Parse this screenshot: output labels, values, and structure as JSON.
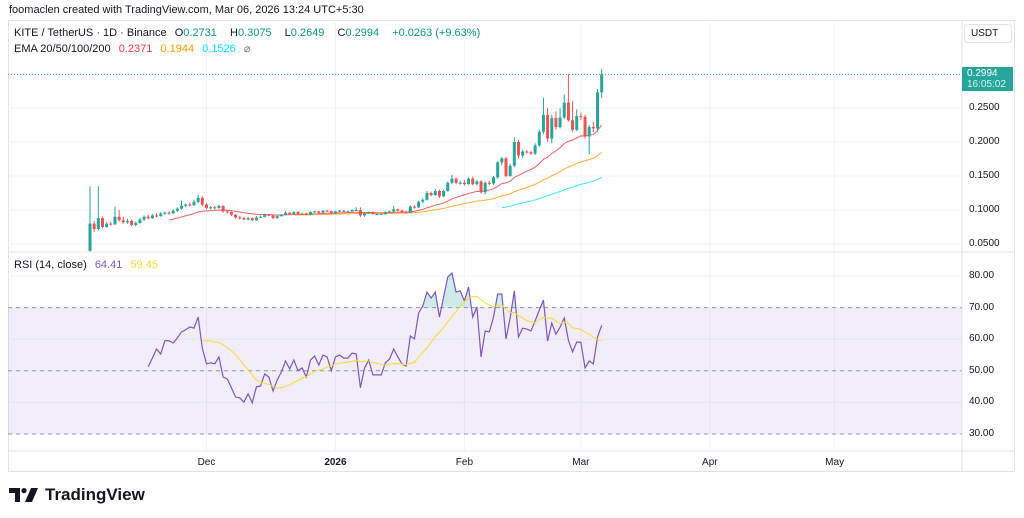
{
  "header": {
    "attribution": "foomaclen created with TradingView.com, Mar 06, 2026 13:24 UTC+5:30"
  },
  "legend": {
    "symbol": "KITE / TetherUS · 1D · Binance",
    "open_label": "O",
    "open": "0.2731",
    "high_label": "H",
    "high": "0.3075",
    "low_label": "L",
    "low": "0.2649",
    "close_label": "C",
    "close": "0.2994",
    "change": "+0.0263 (+9.63%)",
    "ema_label": "EMA 20/50/100/200",
    "ema20": "0.2371",
    "ema50": "0.1944",
    "ema100": "0.1526",
    "ema200": "⌀"
  },
  "rsi_legend": {
    "label": "RSI (14, close)",
    "rsi": "64.41",
    "rsi_ma": "59.45"
  },
  "price_axis": {
    "currency": "USDT",
    "ticks": [
      "0.2500",
      "0.2000",
      "0.1500",
      "0.1000",
      "0.0500"
    ],
    "last_price": "0.2994",
    "countdown": "16:05:02"
  },
  "rsi_axis": {
    "ticks": [
      "80.00",
      "70.00",
      "60.00",
      "50.00",
      "40.00",
      "30.00"
    ]
  },
  "time_axis": {
    "ticks": [
      {
        "label": "Dec",
        "date": "2025-12-01",
        "bold": false
      },
      {
        "label": "2026",
        "date": "2026-01-01",
        "bold": true
      },
      {
        "label": "Feb",
        "date": "2026-02-01",
        "bold": false
      },
      {
        "label": "Mar",
        "date": "2026-03-01",
        "bold": false
      },
      {
        "label": "Apr",
        "date": "2026-04-01",
        "bold": false
      },
      {
        "label": "May",
        "date": "2026-05-01",
        "bold": false
      }
    ]
  },
  "logo": {
    "text": "TradingView"
  },
  "colors": {
    "up": "#26a69a",
    "down": "#ef5350",
    "ema20": "#f23645",
    "ema50": "#ff9800",
    "ema100": "#00e5ff",
    "rsi": "#7e57c2",
    "rsi_ma": "#fdd835",
    "band": "#7e57c2"
  },
  "chart_data": [
    {
      "type": "candlestick",
      "title": "KITE / TetherUS · 1D · Binance",
      "ylim": [
        0.03,
        0.34
      ],
      "y_ticks": [
        0.05,
        0.1,
        0.15,
        0.2,
        0.25
      ],
      "grid": true,
      "indicators": [
        "EMA 20",
        "EMA 50",
        "EMA 100",
        "EMA 200"
      ],
      "columns": [
        "date",
        "open",
        "high",
        "low",
        "close"
      ],
      "candles": [
        [
          "2025-11-03",
          0.04,
          0.135,
          0.038,
          0.08
        ],
        [
          "2025-11-04",
          0.08,
          0.084,
          0.068,
          0.072
        ],
        [
          "2025-11-05",
          0.072,
          0.135,
          0.07,
          0.088
        ],
        [
          "2025-11-06",
          0.088,
          0.09,
          0.073,
          0.075
        ],
        [
          "2025-11-07",
          0.075,
          0.082,
          0.074,
          0.08
        ],
        [
          "2025-11-08",
          0.08,
          0.083,
          0.077,
          0.079
        ],
        [
          "2025-11-09",
          0.079,
          0.105,
          0.078,
          0.09
        ],
        [
          "2025-11-10",
          0.09,
          0.1,
          0.083,
          0.085
        ],
        [
          "2025-11-11",
          0.085,
          0.09,
          0.08,
          0.082
        ],
        [
          "2025-11-12",
          0.082,
          0.087,
          0.08,
          0.084
        ],
        [
          "2025-11-13",
          0.084,
          0.086,
          0.076,
          0.078
        ],
        [
          "2025-11-14",
          0.078,
          0.083,
          0.076,
          0.081
        ],
        [
          "2025-11-15",
          0.081,
          0.088,
          0.08,
          0.086
        ],
        [
          "2025-11-16",
          0.086,
          0.092,
          0.084,
          0.09
        ],
        [
          "2025-11-17",
          0.09,
          0.093,
          0.086,
          0.088
        ],
        [
          "2025-11-18",
          0.088,
          0.094,
          0.087,
          0.092
        ],
        [
          "2025-11-19",
          0.092,
          0.095,
          0.089,
          0.091
        ],
        [
          "2025-11-20",
          0.091,
          0.097,
          0.09,
          0.095
        ],
        [
          "2025-11-21",
          0.095,
          0.098,
          0.093,
          0.096
        ],
        [
          "2025-11-22",
          0.096,
          0.098,
          0.093,
          0.095
        ],
        [
          "2025-11-23",
          0.095,
          0.101,
          0.094,
          0.099
        ],
        [
          "2025-11-24",
          0.099,
          0.104,
          0.097,
          0.102
        ],
        [
          "2025-11-25",
          0.102,
          0.114,
          0.101,
          0.106
        ],
        [
          "2025-11-26",
          0.106,
          0.11,
          0.104,
          0.108
        ],
        [
          "2025-11-27",
          0.108,
          0.111,
          0.105,
          0.107
        ],
        [
          "2025-11-28",
          0.107,
          0.115,
          0.106,
          0.112
        ],
        [
          "2025-11-29",
          0.112,
          0.122,
          0.11,
          0.118
        ],
        [
          "2025-11-30",
          0.118,
          0.12,
          0.106,
          0.108
        ],
        [
          "2025-12-01",
          0.108,
          0.11,
          0.101,
          0.103
        ],
        [
          "2025-12-02",
          0.103,
          0.106,
          0.101,
          0.104
        ],
        [
          "2025-12-03",
          0.104,
          0.106,
          0.101,
          0.103
        ],
        [
          "2025-12-04",
          0.103,
          0.108,
          0.102,
          0.106
        ],
        [
          "2025-12-05",
          0.106,
          0.107,
          0.096,
          0.098
        ],
        [
          "2025-12-06",
          0.098,
          0.1,
          0.095,
          0.097
        ],
        [
          "2025-12-07",
          0.097,
          0.098,
          0.091,
          0.093
        ],
        [
          "2025-12-08",
          0.093,
          0.094,
          0.087,
          0.089
        ],
        [
          "2025-12-09",
          0.089,
          0.091,
          0.086,
          0.088
        ],
        [
          "2025-12-10",
          0.088,
          0.09,
          0.085,
          0.086
        ],
        [
          "2025-12-11",
          0.086,
          0.09,
          0.085,
          0.088
        ],
        [
          "2025-12-12",
          0.088,
          0.089,
          0.084,
          0.085
        ],
        [
          "2025-12-13",
          0.085,
          0.091,
          0.084,
          0.089
        ],
        [
          "2025-12-14",
          0.089,
          0.092,
          0.088,
          0.09
        ],
        [
          "2025-12-15",
          0.09,
          0.095,
          0.089,
          0.093
        ],
        [
          "2025-12-16",
          0.093,
          0.094,
          0.091,
          0.092
        ],
        [
          "2025-12-17",
          0.092,
          0.093,
          0.087,
          0.088
        ],
        [
          "2025-12-18",
          0.088,
          0.092,
          0.087,
          0.091
        ],
        [
          "2025-12-19",
          0.091,
          0.094,
          0.09,
          0.093
        ],
        [
          "2025-12-20",
          0.093,
          0.098,
          0.092,
          0.096
        ],
        [
          "2025-12-21",
          0.096,
          0.097,
          0.093,
          0.094
        ],
        [
          "2025-12-22",
          0.094,
          0.098,
          0.093,
          0.097
        ],
        [
          "2025-12-23",
          0.097,
          0.098,
          0.093,
          0.094
        ],
        [
          "2025-12-24",
          0.094,
          0.096,
          0.093,
          0.095
        ],
        [
          "2025-12-25",
          0.095,
          0.096,
          0.092,
          0.093
        ],
        [
          "2025-12-26",
          0.093,
          0.098,
          0.092,
          0.097
        ],
        [
          "2025-12-27",
          0.097,
          0.099,
          0.096,
          0.098
        ],
        [
          "2025-12-28",
          0.098,
          0.099,
          0.095,
          0.096
        ],
        [
          "2025-12-29",
          0.096,
          0.1,
          0.095,
          0.099
        ],
        [
          "2025-12-30",
          0.099,
          0.1,
          0.097,
          0.098
        ],
        [
          "2025-12-31",
          0.098,
          0.099,
          0.094,
          0.095
        ],
        [
          "2026-01-01",
          0.095,
          0.099,
          0.094,
          0.098
        ],
        [
          "2026-01-02",
          0.098,
          0.1,
          0.097,
          0.099
        ],
        [
          "2026-01-03",
          0.099,
          0.1,
          0.097,
          0.098
        ],
        [
          "2026-01-04",
          0.098,
          0.099,
          0.097,
          0.098
        ],
        [
          "2026-01-05",
          0.098,
          0.101,
          0.097,
          0.1
        ],
        [
          "2026-01-06",
          0.1,
          0.104,
          0.099,
          0.1
        ],
        [
          "2026-01-07",
          0.1,
          0.104,
          0.09,
          0.092
        ],
        [
          "2026-01-08",
          0.092,
          0.096,
          0.09,
          0.095
        ],
        [
          "2026-01-09",
          0.095,
          0.098,
          0.094,
          0.097
        ],
        [
          "2026-01-10",
          0.097,
          0.098,
          0.093,
          0.094
        ],
        [
          "2026-01-11",
          0.094,
          0.096,
          0.093,
          0.094
        ],
        [
          "2026-01-12",
          0.094,
          0.095,
          0.093,
          0.094
        ],
        [
          "2026-01-13",
          0.094,
          0.098,
          0.093,
          0.097
        ],
        [
          "2026-01-14",
          0.097,
          0.099,
          0.096,
          0.098
        ],
        [
          "2026-01-15",
          0.098,
          0.106,
          0.097,
          0.101
        ],
        [
          "2026-01-16",
          0.101,
          0.102,
          0.098,
          0.099
        ],
        [
          "2026-01-17",
          0.099,
          0.101,
          0.096,
          0.097
        ],
        [
          "2026-01-18",
          0.097,
          0.099,
          0.095,
          0.096
        ],
        [
          "2026-01-19",
          0.096,
          0.107,
          0.095,
          0.105
        ],
        [
          "2026-01-20",
          0.105,
          0.107,
          0.102,
          0.104
        ],
        [
          "2026-01-21",
          0.104,
          0.114,
          0.103,
          0.112
        ],
        [
          "2026-01-22",
          0.112,
          0.117,
          0.11,
          0.115
        ],
        [
          "2026-01-23",
          0.115,
          0.128,
          0.114,
          0.125
        ],
        [
          "2026-01-24",
          0.125,
          0.127,
          0.12,
          0.122
        ],
        [
          "2026-01-25",
          0.122,
          0.131,
          0.121,
          0.128
        ],
        [
          "2026-01-26",
          0.128,
          0.13,
          0.118,
          0.12
        ],
        [
          "2026-01-27",
          0.12,
          0.13,
          0.119,
          0.128
        ],
        [
          "2026-01-28",
          0.128,
          0.142,
          0.127,
          0.14
        ],
        [
          "2026-01-29",
          0.14,
          0.152,
          0.138,
          0.146
        ],
        [
          "2026-01-30",
          0.146,
          0.148,
          0.138,
          0.14
        ],
        [
          "2026-01-31",
          0.14,
          0.143,
          0.137,
          0.14
        ],
        [
          "2026-02-01",
          0.14,
          0.144,
          0.136,
          0.138
        ],
        [
          "2026-02-02",
          0.138,
          0.148,
          0.137,
          0.146
        ],
        [
          "2026-02-03",
          0.146,
          0.149,
          0.136,
          0.138
        ],
        [
          "2026-02-04",
          0.138,
          0.144,
          0.136,
          0.142
        ],
        [
          "2026-02-05",
          0.142,
          0.144,
          0.124,
          0.126
        ],
        [
          "2026-02-06",
          0.126,
          0.142,
          0.123,
          0.14
        ],
        [
          "2026-02-07",
          0.14,
          0.143,
          0.137,
          0.139
        ],
        [
          "2026-02-08",
          0.139,
          0.15,
          0.137,
          0.148
        ],
        [
          "2026-02-09",
          0.148,
          0.172,
          0.146,
          0.17
        ],
        [
          "2026-02-10",
          0.17,
          0.178,
          0.166,
          0.176
        ],
        [
          "2026-02-11",
          0.176,
          0.178,
          0.148,
          0.15
        ],
        [
          "2026-02-12",
          0.15,
          0.168,
          0.149,
          0.165
        ],
        [
          "2026-02-13",
          0.165,
          0.207,
          0.163,
          0.2
        ],
        [
          "2026-02-14",
          0.2,
          0.203,
          0.176,
          0.18
        ],
        [
          "2026-02-15",
          0.18,
          0.189,
          0.177,
          0.186
        ],
        [
          "2026-02-16",
          0.186,
          0.188,
          0.183,
          0.185
        ],
        [
          "2026-02-17",
          0.185,
          0.187,
          0.181,
          0.183
        ],
        [
          "2026-02-18",
          0.183,
          0.198,
          0.181,
          0.195
        ],
        [
          "2026-02-19",
          0.195,
          0.218,
          0.193,
          0.215
        ],
        [
          "2026-02-20",
          0.215,
          0.265,
          0.212,
          0.24
        ],
        [
          "2026-02-21",
          0.24,
          0.25,
          0.2,
          0.205
        ],
        [
          "2026-02-22",
          0.205,
          0.24,
          0.198,
          0.235
        ],
        [
          "2026-02-23",
          0.235,
          0.245,
          0.218,
          0.222
        ],
        [
          "2026-02-24",
          0.222,
          0.25,
          0.22,
          0.236
        ],
        [
          "2026-02-25",
          0.236,
          0.27,
          0.234,
          0.258
        ],
        [
          "2026-02-26",
          0.258,
          0.3,
          0.23,
          0.232
        ],
        [
          "2026-02-27",
          0.232,
          0.26,
          0.215,
          0.218
        ],
        [
          "2026-02-28",
          0.218,
          0.248,
          0.216,
          0.238
        ],
        [
          "2026-03-01",
          0.238,
          0.243,
          0.232,
          0.237
        ],
        [
          "2026-03-02",
          0.237,
          0.24,
          0.205,
          0.208
        ],
        [
          "2026-03-03",
          0.208,
          0.225,
          0.182,
          0.222
        ],
        [
          "2026-03-04",
          0.222,
          0.23,
          0.215,
          0.22
        ],
        [
          "2026-03-05",
          0.22,
          0.278,
          0.215,
          0.2731
        ],
        [
          "2026-03-06",
          0.2731,
          0.3075,
          0.2649,
          0.2994
        ]
      ]
    },
    {
      "type": "line",
      "title": "RSI (14, close)",
      "ylim": [
        25,
        85
      ],
      "y_ticks": [
        30,
        40,
        50,
        60,
        70,
        80
      ],
      "bands": {
        "upper": 70,
        "middle": 50,
        "lower": 30
      },
      "series_names": [
        "RSI",
        "RSI-based MA"
      ],
      "rsi": [
        null,
        null,
        null,
        null,
        null,
        null,
        null,
        null,
        null,
        null,
        null,
        null,
        null,
        null,
        51.3,
        54.0,
        56.9,
        55.3,
        59.5,
        59.5,
        58.8,
        60.4,
        62.3,
        63.0,
        63.9,
        63.5,
        67.0,
        57.2,
        52.2,
        52.5,
        52.2,
        54.4,
        48.0,
        47.4,
        44.6,
        41.7,
        41.4,
        40.1,
        42.7,
        39.9,
        44.9,
        45.2,
        49.0,
        48.0,
        43.6,
        47.1,
        49.6,
        53.1,
        50.6,
        53.4,
        50.0,
        50.9,
        48.0,
        53.4,
        54.7,
        51.8,
        55.0,
        54.4,
        50.0,
        54.4,
        55.0,
        54.0,
        54.0,
        55.6,
        55.3,
        44.6,
        50.9,
        53.4,
        48.7,
        48.7,
        48.7,
        52.5,
        53.7,
        56.9,
        54.4,
        52.2,
        51.5,
        61.0,
        60.1,
        68.3,
        70.5,
        74.9,
        73.0,
        74.9,
        67.0,
        73.4,
        79.7,
        80.9,
        74.9,
        75.3,
        72.1,
        76.5,
        67.0,
        70.2,
        54.4,
        62.6,
        62.3,
        67.0,
        74.3,
        74.3,
        60.1,
        66.7,
        75.3,
        60.7,
        63.5,
        63.2,
        62.6,
        65.8,
        69.2,
        72.4,
        59.4,
        65.1,
        61.6,
        63.8,
        66.7,
        59.7,
        56.0,
        59.1,
        59.0,
        50.9,
        53.1,
        52.2,
        60.7,
        64.41
      ]
    }
  ]
}
